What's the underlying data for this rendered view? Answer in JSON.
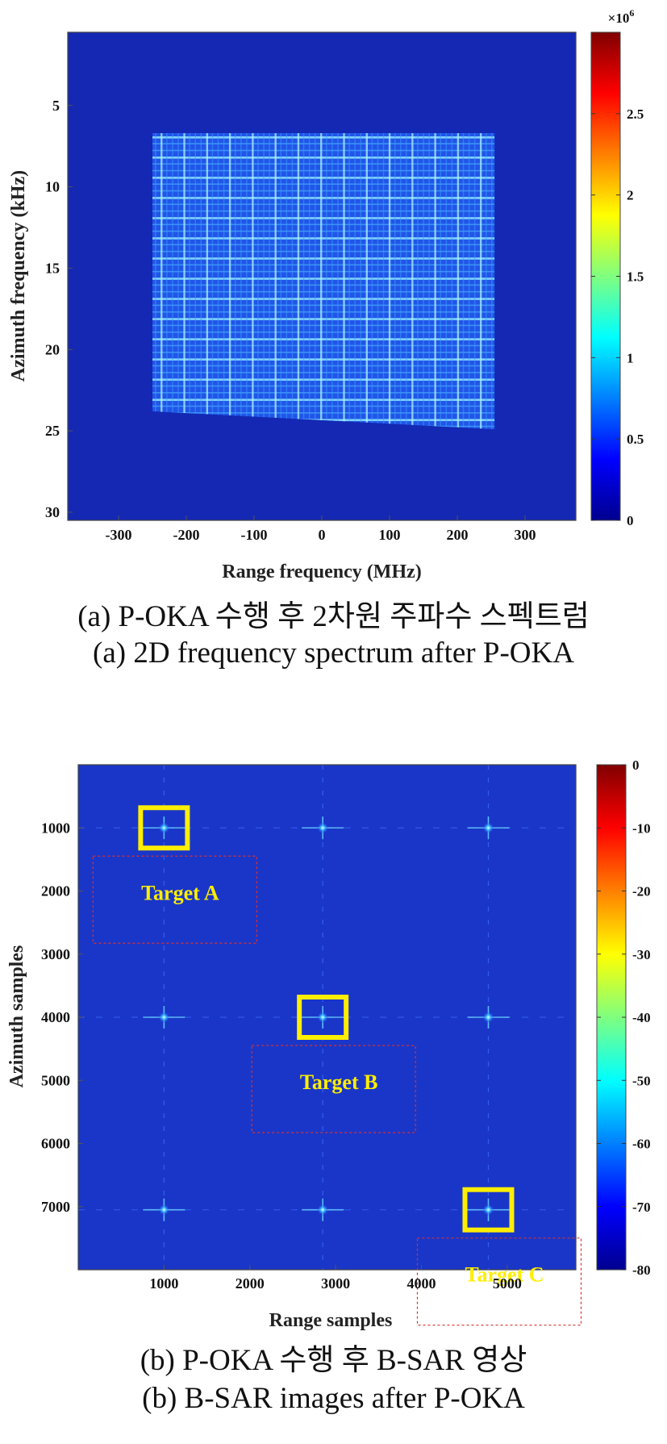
{
  "chart_data": [
    {
      "type": "heatmap",
      "xlabel": "Range frequency (MHz)",
      "ylabel": "Azimuth frequency (kHz)",
      "xlim": [
        -375,
        375
      ],
      "ylim": [
        0.5,
        30.5
      ],
      "x_ticks": [
        -300,
        -200,
        -100,
        0,
        100,
        200,
        300
      ],
      "y_ticks": [
        5,
        10,
        15,
        20,
        25,
        30
      ],
      "colorbar": {
        "min": 0,
        "max": 3000000,
        "ticks": [
          0,
          0.5,
          1,
          1.5,
          2,
          2.5
        ],
        "exponent_label": "×10",
        "exponent_power": "6"
      },
      "signal_region": {
        "x_range": [
          -250,
          255
        ],
        "y_top": 6.7,
        "y_bottom_left": 23.8,
        "y_bottom_right": 24.9
      },
      "caption_ko": "(a) P-OKA 수행 후 2차원 주파수 스펙트럼",
      "caption_en": "(a) 2D frequency spectrum after P-OKA"
    },
    {
      "type": "heatmap",
      "xlabel": "Range samples",
      "ylabel": "Azimuth samples",
      "xlim": [
        0,
        5800
      ],
      "ylim": [
        0,
        8000
      ],
      "x_ticks": [
        1000,
        2000,
        3000,
        4000,
        5000
      ],
      "y_ticks": [
        1000,
        2000,
        3000,
        4000,
        5000,
        6000,
        7000
      ],
      "colorbar": {
        "min": -80,
        "max": 0,
        "ticks": [
          0,
          -10,
          -20,
          -30,
          -40,
          -50,
          -60,
          -70,
          -80
        ]
      },
      "point_targets": [
        {
          "x": 1000,
          "y": 1000
        },
        {
          "x": 2850,
          "y": 1000
        },
        {
          "x": 4780,
          "y": 1000
        },
        {
          "x": 1000,
          "y": 4000
        },
        {
          "x": 2850,
          "y": 4000
        },
        {
          "x": 4780,
          "y": 4000
        },
        {
          "x": 1000,
          "y": 7050
        },
        {
          "x": 2850,
          "y": 7050
        },
        {
          "x": 4780,
          "y": 7050
        }
      ],
      "highlighted_targets": [
        {
          "label": "Target A",
          "x": 1000,
          "y": 1000
        },
        {
          "label": "Target B",
          "x": 2850,
          "y": 4000
        },
        {
          "label": "Target C",
          "x": 4780,
          "y": 7050
        }
      ],
      "caption_ko": "(b) P-OKA 수행 후 B-SAR 영상",
      "caption_en": "(b) B-SAR images after P-OKA"
    }
  ]
}
